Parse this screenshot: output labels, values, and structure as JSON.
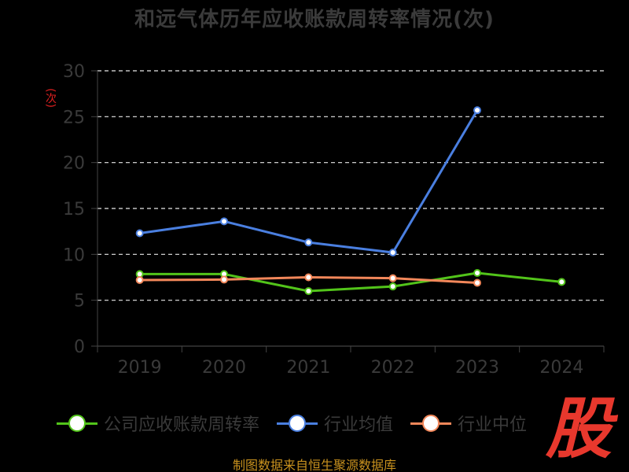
{
  "chart_data": {
    "type": "line",
    "title": "和远气体历年应收账款周转率情况(次)",
    "ylabel": "(次)",
    "categories": [
      "2019",
      "2020",
      "2021",
      "2022",
      "2023",
      "2024"
    ],
    "ylim": [
      0,
      30
    ],
    "yticks": [
      0,
      5,
      10,
      15,
      20,
      25,
      30
    ],
    "grid": true,
    "legend_position": "bottom",
    "series": [
      {
        "name": "公司应收账款周转率",
        "color": "#52c41a",
        "values": [
          7.85,
          7.85,
          6.0,
          6.5,
          7.97,
          7.0
        ]
      },
      {
        "name": "行业均值",
        "color": "#4a7fe0",
        "values": [
          12.3,
          13.6,
          11.3,
          10.2,
          25.7,
          null
        ]
      },
      {
        "name": "行业中位",
        "color": "#f2875a",
        "values": [
          7.2,
          7.25,
          7.5,
          7.4,
          6.9,
          null
        ]
      }
    ]
  },
  "watermark": {
    "text": "股"
  },
  "source_note": "制图数据来自恒生聚源数据库"
}
